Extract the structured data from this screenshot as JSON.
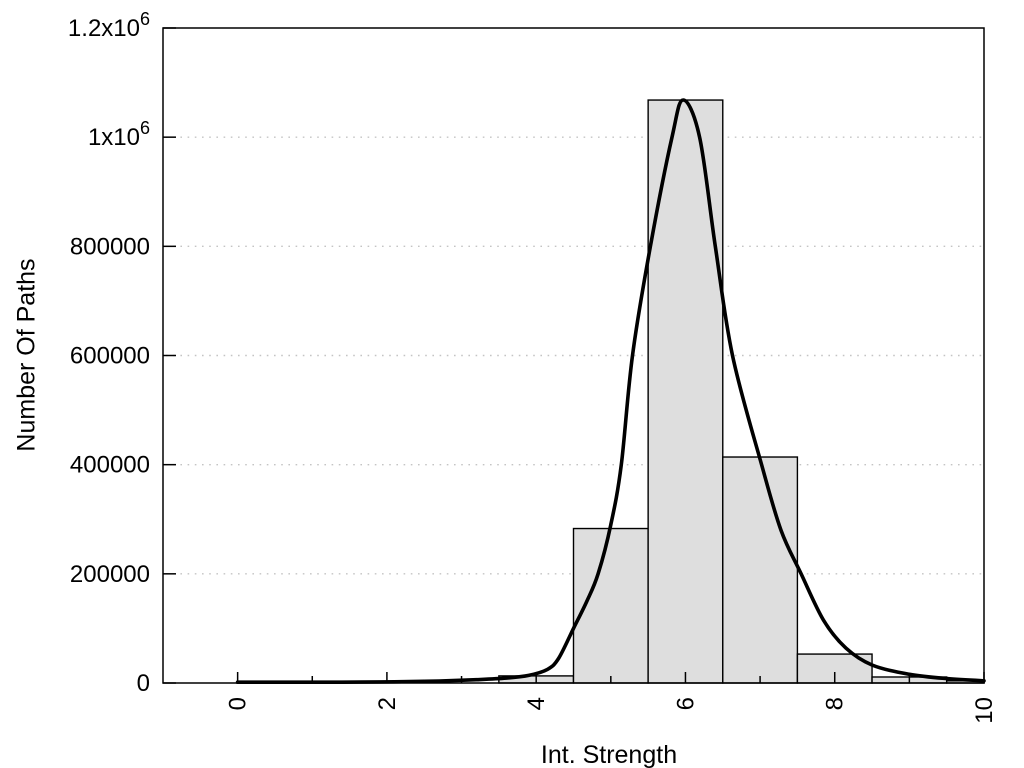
{
  "chart_data": {
    "type": "bar",
    "subtype": "histogram-with-density-curve",
    "title": "",
    "xlabel": "Int. Strength",
    "ylabel": "Number Of Paths",
    "xlim": [
      -1,
      10
    ],
    "ylim": [
      0,
      1200000
    ],
    "grid": {
      "horizontal": true,
      "vertical": false,
      "style": "dotted"
    },
    "legend": "none",
    "x_ticks_all": [
      0,
      1,
      2,
      3,
      4,
      5,
      6,
      7,
      8,
      9,
      10
    ],
    "x_labeled_ticks": [
      {
        "value": 0,
        "label": "0"
      },
      {
        "value": 2,
        "label": "2"
      },
      {
        "value": 4,
        "label": "4"
      },
      {
        "value": 6,
        "label": "6"
      },
      {
        "value": 8,
        "label": "8"
      },
      {
        "value": 10,
        "label": "10"
      }
    ],
    "x_tick_label_rotation_deg": -90,
    "y_ticks": [
      {
        "value": 0,
        "text": "0",
        "sup": ""
      },
      {
        "value": 200000,
        "text": "200000",
        "sup": ""
      },
      {
        "value": 400000,
        "text": "400000",
        "sup": ""
      },
      {
        "value": 600000,
        "text": "600000",
        "sup": ""
      },
      {
        "value": 800000,
        "text": "800000",
        "sup": ""
      },
      {
        "value": 1000000,
        "text": "1x10",
        "sup": "6"
      },
      {
        "value": 1200000,
        "text": "1.2x10",
        "sup": "6"
      }
    ],
    "bars": {
      "bin_width": 1,
      "centers": [
        4,
        5,
        6,
        7,
        8,
        9,
        10
      ],
      "values": [
        13000,
        283000,
        1068000,
        414000,
        53000,
        11000,
        4000
      ],
      "note_last_bin_clipped_at_x": 10
    },
    "curve_points": [
      [
        0,
        1000
      ],
      [
        0.7,
        1100
      ],
      [
        1.4,
        1500
      ],
      [
        2.1,
        2200
      ],
      [
        2.7,
        3500
      ],
      [
        3.2,
        6000
      ],
      [
        3.6,
        9000
      ],
      [
        3.9,
        14000
      ],
      [
        4.15,
        25000
      ],
      [
        4.3,
        45000
      ],
      [
        4.5,
        100000
      ],
      [
        4.68,
        150000
      ],
      [
        4.83,
        200000
      ],
      [
        5.0,
        290000
      ],
      [
        5.14,
        400000
      ],
      [
        5.29,
        600000
      ],
      [
        5.53,
        800000
      ],
      [
        5.82,
        1000000
      ],
      [
        5.97,
        1068000
      ],
      [
        6.19,
        1000000
      ],
      [
        6.4,
        800000
      ],
      [
        6.63,
        600000
      ],
      [
        7.02,
        400000
      ],
      [
        7.28,
        280000
      ],
      [
        7.55,
        200000
      ],
      [
        7.85,
        115000
      ],
      [
        8.15,
        64000
      ],
      [
        8.5,
        33000
      ],
      [
        9.0,
        16000
      ],
      [
        9.5,
        8000
      ],
      [
        10,
        4000
      ]
    ],
    "colors": {
      "background": "#ffffff",
      "bar_fill": "#dedede",
      "bar_border": "#000000",
      "curve": "#000000",
      "grid": "#c4c4c4",
      "axis": "#000000",
      "text": "#000000"
    }
  }
}
